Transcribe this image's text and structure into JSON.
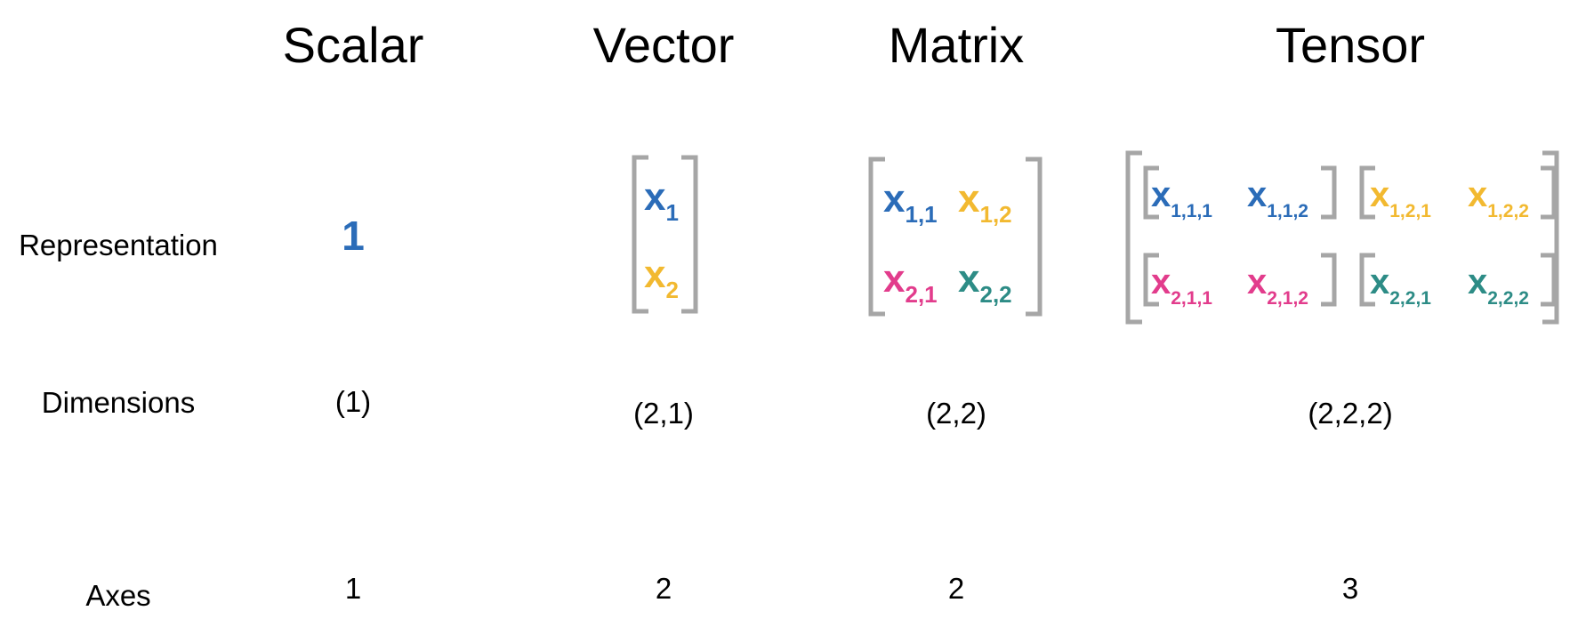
{
  "headers": {
    "scalar": "Scalar",
    "vector": "Vector",
    "matrix": "Matrix",
    "tensor": "Tensor"
  },
  "row_labels": {
    "representation": "Representation",
    "dimensions": "Dimensions",
    "axes": "Axes"
  },
  "scalar": {
    "value": "1",
    "dimensions": "(1)",
    "axes": "1"
  },
  "vector": {
    "elements": [
      {
        "base": "x",
        "sub": "1",
        "color": "#2b6cb8"
      },
      {
        "base": "x",
        "sub": "2",
        "color": "#f2b930"
      }
    ],
    "dimensions": "(2,1)",
    "axes": "2"
  },
  "matrix": {
    "elements": [
      {
        "base": "x",
        "sub": "1,1",
        "color": "#2b6cb8"
      },
      {
        "base": "x",
        "sub": "1,2",
        "color": "#f2b930"
      },
      {
        "base": "x",
        "sub": "2,1",
        "color": "#e23c8c"
      },
      {
        "base": "x",
        "sub": "2,2",
        "color": "#2d8c86"
      }
    ],
    "dimensions": "(2,2)",
    "axes": "2"
  },
  "tensor": {
    "elements": [
      {
        "base": "x",
        "sub": "1,1,1",
        "color": "#2b6cb8"
      },
      {
        "base": "x",
        "sub": "1,1,2",
        "color": "#2b6cb8"
      },
      {
        "base": "x",
        "sub": "1,2,1",
        "color": "#f2b930"
      },
      {
        "base": "x",
        "sub": "1,2,2",
        "color": "#f2b930"
      },
      {
        "base": "x",
        "sub": "2,1,1",
        "color": "#e23c8c"
      },
      {
        "base": "x",
        "sub": "2,1,2",
        "color": "#e23c8c"
      },
      {
        "base": "x",
        "sub": "2,2,1",
        "color": "#2d8c86"
      },
      {
        "base": "x",
        "sub": "2,2,2",
        "color": "#2d8c86"
      }
    ],
    "dimensions": "(2,2,2)",
    "axes": "3"
  },
  "colors": {
    "blue": "#2b6cb8",
    "yellow": "#f2b930",
    "pink": "#e23c8c",
    "teal": "#2d8c86",
    "bracket": "#a6a6a6"
  }
}
